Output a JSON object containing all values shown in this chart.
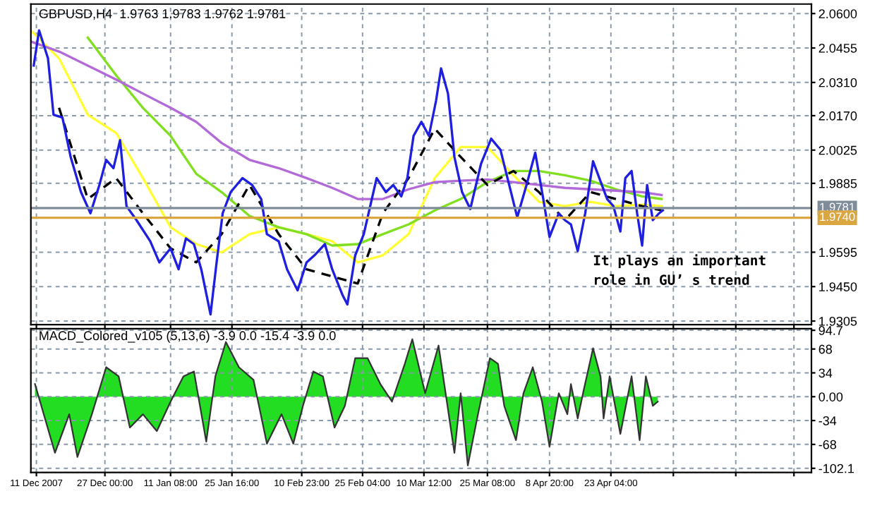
{
  "chart_data": [
    {
      "type": "line",
      "title": "GBPUSD,H4  1.9763 1.9783 1.9762 1.9781",
      "xlim": [
        "2007-12-09T17:00",
        "2008-06-09T00:00"
      ],
      "xticks": [
        {
          "value": "2007-12-11",
          "label": null
        },
        {
          "value": "2007-12-27T00:00",
          "label": null
        },
        {
          "value": "2008-01-11T08:00",
          "label": null
        },
        {
          "value": "2008-01-25T16:00",
          "label": null
        },
        {
          "value": "2008-02-10T23:00",
          "label": null
        },
        {
          "value": "2008-02-25T04:00",
          "label": null
        },
        {
          "value": "2008-03-10T12:00",
          "label": null
        },
        {
          "value": "2008-03-25T08:00",
          "label": null
        },
        {
          "value": "2008-04-08T20:00",
          "label": null
        },
        {
          "value": "2008-04-23T04:00",
          "label": null
        },
        {
          "value": "2008-05-07T18:00",
          "label": null
        },
        {
          "value": "2008-05-22T08:00",
          "label": null
        },
        {
          "value": "2008-06-04T22:00",
          "label": null
        }
      ],
      "ylim": [
        1.929,
        2.064
      ],
      "yticks": [
        {
          "value": 1.9305,
          "label": "1.9305"
        },
        {
          "value": 1.945,
          "label": "1.9450"
        },
        {
          "value": 1.9595,
          "label": "1.9595"
        },
        {
          "value": 1.9885,
          "label": "1.9885"
        },
        {
          "value": 2.0025,
          "label": "2.0025"
        },
        {
          "value": 2.017,
          "label": "2.0170"
        },
        {
          "value": 2.031,
          "label": "2.0310"
        },
        {
          "value": 2.0455,
          "label": "2.0455"
        },
        {
          "value": 2.06,
          "label": "2.0600"
        }
      ],
      "tick_labels": "y",
      "grid": true,
      "ref_lines": [
        {
          "axis": "y",
          "value": 1.9781,
          "label": "1.9781",
          "color": "#7f8c9a"
        },
        {
          "axis": "y",
          "value": 1.974,
          "label": "1.9740",
          "color": "#d9a640"
        }
      ],
      "annotations": [
        "It plays an important\nrole in GU’ s trend"
      ],
      "series": [
        {
          "color": "#ffff33",
          "x": [
            "2007-12-09T17:00",
            "2007-12-16T07:00",
            "2007-12-23T00:00",
            "2007-12-29T15:00",
            "2008-01-04T21:00",
            "2008-01-11T08:00",
            "2008-01-17T08:00",
            "2008-01-23T06:00",
            "2008-01-29T18:00",
            "2008-02-05T14:00",
            "2008-02-12T02:00",
            "2008-02-18T02:00",
            "2008-02-24T01:00",
            "2008-02-29T22:00",
            "2008-03-06T22:00",
            "2008-03-13T01:00",
            "2008-03-19T02:00",
            "2008-03-25T08:00",
            "2008-03-31T10:00",
            "2008-04-06T09:00",
            "2008-04-12T10:00",
            "2008-04-18T10:00",
            "2008-04-24T08:00",
            "2008-04-30T11:00",
            "2008-05-05T00:00"
          ],
          "values": [
            2.0529,
            2.0411,
            2.0174,
            2.0097,
            1.9907,
            1.97,
            1.9629,
            1.9594,
            1.9671,
            1.97,
            1.9671,
            1.9641,
            1.9552,
            1.9582,
            1.9671,
            1.9907,
            2.0038,
            2.0038,
            1.9919,
            1.9807,
            1.9789,
            1.9807,
            1.9789,
            1.9795,
            1.9789
          ]
        },
        {
          "color": "#80e020",
          "x": [
            "2007-12-23T00:00",
            "2007-12-29T15:00",
            "2008-01-04T21:00",
            "2008-01-11T08:00",
            "2008-01-17T08:00",
            "2008-01-23T06:00",
            "2008-01-29T18:00",
            "2008-02-05T14:00",
            "2008-02-12T02:00",
            "2008-02-18T02:00",
            "2008-02-24T01:00",
            "2008-02-29T22:00",
            "2008-03-06T22:00",
            "2008-03-13T01:00",
            "2008-03-19T02:00",
            "2008-03-25T08:00",
            "2008-03-31T10:00",
            "2008-04-06T09:00",
            "2008-04-12T10:00",
            "2008-04-18T10:00",
            "2008-04-24T08:00",
            "2008-04-30T11:00",
            "2008-05-05T00:00"
          ],
          "values": [
            2.0499,
            2.034,
            2.0203,
            2.0085,
            1.9925,
            1.9848,
            1.9748,
            1.97,
            1.9671,
            1.9623,
            1.9629,
            1.9671,
            1.9712,
            1.9771,
            1.9819,
            1.989,
            1.9937,
            1.9937,
            1.9919,
            1.9896,
            1.986,
            1.983,
            1.9819
          ]
        },
        {
          "color": "#b36ad9",
          "x": [
            "2007-12-09T17:00",
            "2007-12-16T07:00",
            "2007-12-23T00:00",
            "2007-12-29T15:00",
            "2008-01-04T21:00",
            "2008-01-11T08:00",
            "2008-01-17T08:00",
            "2008-01-23T06:00",
            "2008-01-29T18:00",
            "2008-02-05T14:00",
            "2008-02-12T02:00",
            "2008-02-18T02:00",
            "2008-02-24T01:00",
            "2008-02-29T22:00",
            "2008-03-06T22:00",
            "2008-03-13T01:00",
            "2008-03-19T02:00",
            "2008-03-25T08:00",
            "2008-03-31T10:00",
            "2008-04-06T09:00",
            "2008-04-12T10:00",
            "2008-04-18T10:00",
            "2008-04-24T08:00",
            "2008-04-30T11:00",
            "2008-05-05T00:00"
          ],
          "values": [
            2.0482,
            2.044,
            2.0381,
            2.0322,
            2.0263,
            2.0203,
            2.0144,
            2.0055,
            1.9984,
            1.9949,
            1.9907,
            1.9866,
            1.9819,
            1.9819,
            1.986,
            1.989,
            1.9896,
            1.9901,
            1.989,
            1.9878,
            1.9866,
            1.986,
            1.9854,
            1.9848,
            1.9836
          ]
        },
        {
          "color": "#000000",
          "line_style": "dashed",
          "x": [
            "2007-12-16T07:00",
            "2007-12-23T00:00",
            "2007-12-29T15:00",
            "2008-01-04T21:00",
            "2008-01-11T08:00",
            "2008-01-17T08:00",
            "2008-01-23T06:00",
            "2008-01-29T18:00",
            "2008-02-05T14:00",
            "2008-02-12T02:00",
            "2008-02-18T02:00",
            "2008-02-24T01:00",
            "2008-02-29T22:00",
            "2008-03-06T22:00",
            "2008-03-13T01:00",
            "2008-03-19T02:00",
            "2008-03-25T08:00",
            "2008-03-31T10:00",
            "2008-04-06T09:00",
            "2008-04-12T10:00",
            "2008-04-18T10:00",
            "2008-04-24T08:00",
            "2008-04-30T11:00",
            "2008-05-05T00:00"
          ],
          "values": [
            2.0203,
            1.9819,
            1.9907,
            1.9759,
            1.9611,
            1.9552,
            1.9671,
            1.9878,
            1.9671,
            1.9523,
            1.9493,
            1.9463,
            1.9759,
            1.9907,
            2.0115,
            1.9996,
            1.9878,
            1.9937,
            1.9848,
            1.973,
            1.9848,
            1.9819,
            1.9789,
            1.9771
          ]
        },
        {
          "color": "#1f1fe0",
          "x": [
            "2007-12-10T09:00",
            "2007-12-11T15:00",
            "2007-12-13T17:00",
            "2007-12-15T00:00",
            "2007-12-17T02:00",
            "2007-12-19T00:00",
            "2007-12-21T10:00",
            "2007-12-23T15:00",
            "2007-12-25T17:00",
            "2007-12-27T07:00",
            "2007-12-29T00:00",
            "2007-12-30T13:00",
            "2008-01-01T01:00",
            "2008-01-03T09:00",
            "2008-01-06T14:00",
            "2008-01-08T17:00",
            "2008-01-11T08:00",
            "2008-01-13T05:00",
            "2008-01-14T22:00",
            "2008-01-16T19:00",
            "2008-01-18T12:00",
            "2008-01-20T16:00",
            "2008-01-22T02:00",
            "2008-01-23T12:00",
            "2008-01-25T09:00",
            "2008-01-28T03:00",
            "2008-01-30T09:00",
            "2008-02-01T12:00",
            "2008-02-02T20:00",
            "2008-02-05T14:00",
            "2008-02-07T13:00",
            "2008-02-10T00:00",
            "2008-02-12T02:00",
            "2008-02-13T23:00",
            "2008-02-16T09:00",
            "2008-02-18T02:00",
            "2008-02-20T11:00",
            "2008-02-21T15:00",
            "2008-02-23T11:00",
            "2008-02-25T11:00",
            "2008-02-27T08:00",
            "2008-02-28T11:00",
            "2008-03-01T15:00",
            "2008-03-03T08:00",
            "2008-03-05T05:00",
            "2008-03-06T15:00",
            "2008-03-08T02:00",
            "2008-03-09T22:00",
            "2008-03-11T16:00",
            "2008-03-13T08:00",
            "2008-03-14T12:00",
            "2008-03-16T03:00",
            "2008-03-17T15:00",
            "2008-03-19T10:00",
            "2008-03-21T08:00",
            "2008-03-23T20:00",
            "2008-03-26T05:00",
            "2008-03-28T09:00",
            "2008-03-30T10:00",
            "2008-04-01T07:00",
            "2008-04-03T11:00",
            "2008-04-05T12:00",
            "2008-04-07T09:00",
            "2008-04-08T20:00",
            "2008-04-11T00:00",
            "2008-04-12T10:00",
            "2008-04-13T20:00",
            "2008-04-15T10:00",
            "2008-04-17T04:00",
            "2008-04-19T00:00",
            "2008-04-20T11:00",
            "2008-04-22T07:00",
            "2008-04-23T18:00",
            "2008-04-25T09:00",
            "2008-04-26T13:00",
            "2008-04-28T00:00",
            "2008-04-29T07:00",
            "2008-04-30T11:00",
            "2008-05-01T15:00",
            "2008-05-02T23:00",
            "2008-05-04T10:00",
            "2008-05-05T07:00"
          ],
          "values": [
            2.0381,
            2.0529,
            2.0411,
            2.0174,
            2.0162,
            1.9996,
            1.9848,
            1.9759,
            1.9878,
            1.9984,
            1.9949,
            2.0067,
            1.9789,
            1.973,
            1.9641,
            1.9552,
            1.9611,
            1.9523,
            1.9653,
            1.9629,
            1.9523,
            1.9333,
            1.9552,
            1.9759,
            1.9848,
            1.9907,
            1.9878,
            1.9819,
            1.9671,
            1.9641,
            1.9523,
            1.9434,
            1.9552,
            1.9582,
            1.9629,
            1.9523,
            1.9416,
            1.9375,
            1.9582,
            1.9671,
            1.9819,
            1.9907,
            1.9848,
            1.9878,
            1.983,
            1.9907,
            2.0085,
            2.0144,
            2.0085,
            2.0233,
            2.0369,
            2.0263,
            1.9996,
            1.9848,
            1.9777,
            1.9967,
            2.0073,
            2.0026,
            1.9878,
            1.9742,
            1.9878,
            2.0014,
            1.9819,
            1.9659,
            1.9759,
            1.973,
            1.9712,
            1.96,
            1.9759,
            1.9978,
            1.9907,
            1.9819,
            1.9789,
            1.9682,
            1.9907,
            1.9937,
            1.9759,
            1.9623,
            1.9878,
            1.973,
            1.9759,
            1.9771
          ]
        }
      ]
    },
    {
      "type": "area",
      "title": "MACD_Colored_v105 (5,13,6) -3.9 0.0 -15.4 -3.9 0.0",
      "xlim": [
        "2007-12-09T17:00",
        "2008-06-09T00:00"
      ],
      "xticks": [
        {
          "value": "2007-12-11",
          "label": "11 Dec 2007"
        },
        {
          "value": "2007-12-27T00:00",
          "label": "27 Dec 00:00"
        },
        {
          "value": "2008-01-11T08:00",
          "label": "11 Jan 08:00"
        },
        {
          "value": "2008-01-25T16:00",
          "label": "25 Jan 16:00"
        },
        {
          "value": "2008-02-10T23:00",
          "label": "10 Feb 23:00"
        },
        {
          "value": "2008-02-25T04:00",
          "label": "25 Feb 04:00"
        },
        {
          "value": "2008-03-10T12:00",
          "label": "10 Mar 12:00"
        },
        {
          "value": "2008-03-25T08:00",
          "label": "25 Mar 08:00"
        },
        {
          "value": "2008-04-08T20:00",
          "label": "8 Apr 20:00"
        },
        {
          "value": "2008-04-23T04:00",
          "label": "23 Apr 04:00"
        },
        {
          "value": "2008-05-07T18:00",
          "label": null
        },
        {
          "value": "2008-05-22T08:00",
          "label": null
        },
        {
          "value": "2008-06-04T22:00",
          "label": null
        }
      ],
      "ylim": [
        -108,
        97
      ],
      "yticks": [
        {
          "value": -102.1,
          "label": "-102.1"
        },
        -68,
        -34,
        {
          "value": 0,
          "label": "0.00"
        },
        34,
        68,
        94.7
      ],
      "grid": true,
      "series": [
        {
          "color": "#22dd22",
          "x": [
            "2007-12-10T16:00",
            "2007-12-15T08:00",
            "2007-12-18T16:00",
            "2007-12-20T14:00",
            "2007-12-23T23:00",
            "2007-12-27T07:00",
            "2007-12-30T05:00",
            "2008-01-01T20:00",
            "2008-01-04T21:00",
            "2008-01-08T03:00",
            "2008-01-11T08:00",
            "2008-01-14T08:00",
            "2008-01-16T19:00",
            "2008-01-19T16:00",
            "2008-01-21T19:00",
            "2008-01-24T06:00",
            "2008-01-27T07:00",
            "2008-01-30T17:00",
            "2008-02-02T20:00",
            "2008-02-06T06:00",
            "2008-02-09T00:00",
            "2008-02-11T06:00",
            "2008-02-13T16:00",
            "2008-02-15T22:00",
            "2008-02-18T15:00",
            "2008-02-21T01:00",
            "2008-02-23T11:00",
            "2008-02-26T08:00",
            "2008-02-29T08:00",
            "2008-03-03T01:00",
            "2008-03-06T01:00",
            "2008-03-07T19:00",
            "2008-03-10T19:00",
            "2008-03-13T22:00",
            "2008-03-17T15:00",
            "2008-03-19T02:00",
            "2008-03-20T18:00",
            "2008-03-23T03:00",
            "2008-03-25T22:00",
            "2008-03-27T19:00",
            "2008-03-29T06:00",
            "2008-04-01T00:00",
            "2008-04-02T18:00",
            "2008-04-04T22:00",
            "2008-04-07T02:00",
            "2008-04-08T20:00",
            "2008-04-11T00:00",
            "2008-04-13T00:00",
            "2008-04-13T20:00",
            "2008-04-15T10:00",
            "2008-04-16T21:00",
            "2008-04-19T00:00",
            "2008-04-20T18:00",
            "2008-04-21T11:00",
            "2008-04-22T21:00",
            "2008-04-25T09:00",
            "2008-04-28T00:00",
            "2008-04-29T21:00",
            "2008-05-01T08:00",
            "2008-05-02T23:00",
            "2008-05-04T03:00"
          ],
          "values": [
            18,
            -80,
            -25,
            -86,
            -25,
            42,
            29,
            -44,
            -25,
            -49,
            -7,
            29,
            36,
            -64,
            29,
            78,
            42,
            24,
            -67,
            -25,
            -67,
            -13,
            36,
            29,
            -44,
            -13,
            55,
            55,
            18,
            -7,
            47,
            82,
            5,
            73,
            -80,
            5,
            -98,
            -25,
            55,
            47,
            -13,
            -62,
            5,
            42,
            -7,
            -71,
            5,
            -25,
            18,
            -31,
            11,
            69,
            29,
            -31,
            29,
            -53,
            29,
            -62,
            29,
            -13,
            -7
          ]
        }
      ]
    }
  ]
}
